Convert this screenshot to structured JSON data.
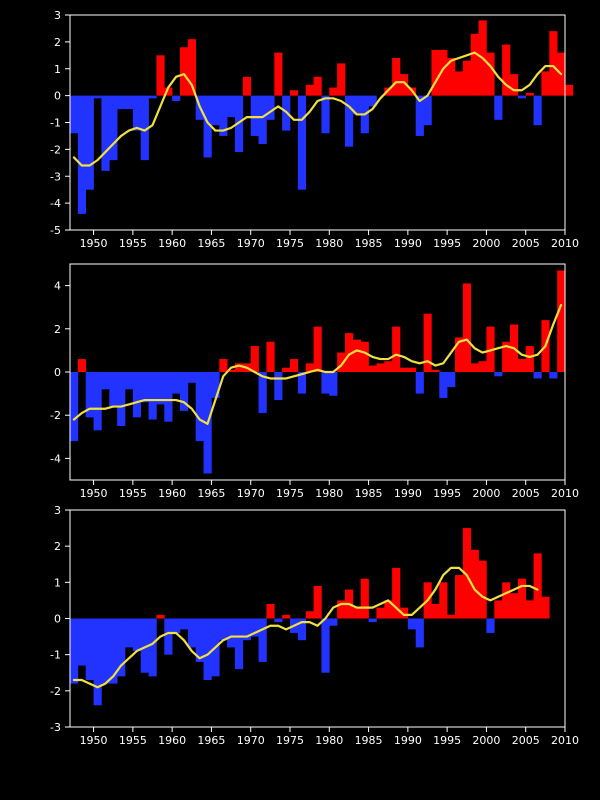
{
  "colors": {
    "background": "#000000",
    "positive": "#ff0000",
    "negative": "#2233ff",
    "smooth": "#f0e040",
    "axis": "#ffffff"
  },
  "chart_data": [
    {
      "type": "bar",
      "title": "",
      "xlabel": "",
      "ylabel": "",
      "xlim": [
        1947,
        2010
      ],
      "ylim": [
        -5,
        3
      ],
      "xticks": [
        1950,
        1955,
        1960,
        1965,
        1970,
        1975,
        1980,
        1985,
        1990,
        1995,
        2000,
        2005,
        2010
      ],
      "yticks": [
        -5,
        -4,
        -3,
        -2,
        -1,
        0,
        1,
        2,
        3
      ],
      "grid": false,
      "x_start": 1947,
      "series": [
        {
          "values": [
            -1.4,
            -4.4,
            -3.5,
            -0.1,
            -2.8,
            -2.4,
            -0.5,
            -0.5,
            -1.3,
            -2.4,
            -0.1,
            1.5,
            0.3,
            -0.2,
            1.8,
            2.1,
            -0.9,
            -2.3,
            -1.1,
            -1.5,
            -0.8,
            -2.1,
            0.7,
            -1.5,
            -1.8,
            -0.9,
            1.6,
            -1.3,
            0.2,
            -3.5,
            0.4,
            0.7,
            -1.4,
            0.3,
            1.2,
            -1.9,
            -0.7,
            -1.4,
            -0.4,
            0.0,
            0.3,
            1.4,
            0.8,
            0.3,
            -1.5,
            -1.1,
            1.7,
            1.7,
            1.4,
            0.9,
            1.3,
            2.3,
            2.8,
            1.6,
            -0.9,
            1.9,
            0.8,
            -0.1,
            0.1,
            -1.1,
            0.9,
            2.4,
            1.6,
            0.4
          ]
        },
        {
          "values": [
            -2.3,
            -2.6,
            -2.6,
            -2.4,
            -2.1,
            -1.8,
            -1.5,
            -1.3,
            -1.2,
            -1.3,
            -1.1,
            -0.4,
            0.3,
            0.7,
            0.8,
            0.4,
            -0.4,
            -1.0,
            -1.3,
            -1.3,
            -1.2,
            -1.0,
            -0.8,
            -0.8,
            -0.8,
            -0.6,
            -0.4,
            -0.6,
            -0.9,
            -0.9,
            -0.6,
            -0.2,
            -0.1,
            -0.1,
            -0.2,
            -0.4,
            -0.7,
            -0.7,
            -0.5,
            -0.1,
            0.2,
            0.5,
            0.5,
            0.2,
            -0.2,
            0.0,
            0.5,
            1.0,
            1.3,
            1.4,
            1.5,
            1.6,
            1.4,
            1.1,
            0.7,
            0.4,
            0.2,
            0.2,
            0.4,
            0.8,
            1.1,
            1.1,
            0.8
          ]
        }
      ]
    },
    {
      "type": "bar",
      "title": "",
      "xlabel": "",
      "ylabel": "",
      "xlim": [
        1947,
        2010
      ],
      "ylim": [
        -5,
        5
      ],
      "xticks": [
        1950,
        1955,
        1960,
        1965,
        1970,
        1975,
        1980,
        1985,
        1990,
        1995,
        2000,
        2005,
        2010
      ],
      "yticks": [
        -4,
        -2,
        0,
        2,
        4
      ],
      "grid": false,
      "x_start": 1947,
      "series": [
        {
          "values": [
            -3.2,
            0.6,
            -2.1,
            -2.7,
            -0.8,
            -1.6,
            -2.5,
            -0.8,
            -2.1,
            -1.4,
            -2.2,
            -1.5,
            -2.3,
            -1.0,
            -1.8,
            -0.5,
            -3.2,
            -4.7,
            -1.2,
            0.6,
            0.1,
            0.4,
            0.4,
            1.2,
            -1.9,
            1.4,
            -1.3,
            0.2,
            0.6,
            -1.0,
            0.4,
            2.1,
            -1.0,
            -1.1,
            0.9,
            1.8,
            1.5,
            1.4,
            0.3,
            0.4,
            0.5,
            2.1,
            0.2,
            0.2,
            -1.0,
            2.7,
            0.1,
            -1.2,
            -0.7,
            1.6,
            4.1,
            0.4,
            0.5,
            2.1,
            -0.2,
            1.4,
            2.2,
            0.6,
            1.2,
            -0.3,
            2.4,
            -0.3,
            4.7
          ]
        },
        {
          "values": [
            -2.2,
            -1.9,
            -1.7,
            -1.7,
            -1.7,
            -1.6,
            -1.6,
            -1.5,
            -1.4,
            -1.3,
            -1.3,
            -1.3,
            -1.3,
            -1.3,
            -1.4,
            -1.7,
            -2.2,
            -2.4,
            -1.3,
            -0.2,
            0.2,
            0.3,
            0.2,
            0.0,
            -0.2,
            -0.3,
            -0.3,
            -0.3,
            -0.2,
            -0.1,
            0.0,
            0.1,
            0.0,
            0.0,
            0.3,
            0.8,
            1.0,
            0.9,
            0.7,
            0.6,
            0.6,
            0.8,
            0.7,
            0.5,
            0.4,
            0.5,
            0.3,
            0.4,
            0.9,
            1.4,
            1.5,
            1.1,
            0.9,
            1.0,
            1.1,
            1.2,
            1.1,
            0.8,
            0.7,
            0.8,
            1.2,
            2.2,
            3.1
          ]
        }
      ]
    },
    {
      "type": "bar",
      "title": "",
      "xlabel": "",
      "ylabel": "",
      "xlim": [
        1947,
        2010
      ],
      "ylim": [
        -3,
        3
      ],
      "xticks": [
        1950,
        1955,
        1960,
        1965,
        1970,
        1975,
        1980,
        1985,
        1990,
        1995,
        2000,
        2005,
        2010
      ],
      "yticks": [
        -3,
        -2,
        -1,
        0,
        1,
        2,
        3
      ],
      "grid": false,
      "x_start": 1947,
      "series": [
        {
          "values": [
            -1.8,
            -1.3,
            -1.7,
            -2.4,
            -1.8,
            -1.8,
            -1.6,
            -0.8,
            -0.9,
            -1.5,
            -1.6,
            0.1,
            -1.0,
            -0.4,
            -0.3,
            -0.8,
            -1.2,
            -1.7,
            -1.6,
            -0.6,
            -0.8,
            -1.4,
            -0.6,
            -0.5,
            -1.2,
            0.4,
            -0.1,
            0.1,
            -0.4,
            -0.6,
            0.2,
            0.9,
            -1.5,
            -0.2,
            0.5,
            0.8,
            0.3,
            1.1,
            -0.1,
            0.3,
            0.5,
            1.4,
            0.3,
            -0.3,
            -0.8,
            1.0,
            0.4,
            1.0,
            0.1,
            1.2,
            2.5,
            1.9,
            1.6,
            -0.4,
            0.5,
            1.0,
            0.7,
            1.1,
            0.5,
            1.8,
            0.6
          ]
        },
        {
          "values": [
            -1.7,
            -1.7,
            -1.8,
            -1.9,
            -1.8,
            -1.6,
            -1.3,
            -1.1,
            -0.9,
            -0.8,
            -0.7,
            -0.5,
            -0.4,
            -0.4,
            -0.6,
            -0.9,
            -1.1,
            -1.0,
            -0.8,
            -0.6,
            -0.5,
            -0.5,
            -0.5,
            -0.4,
            -0.3,
            -0.2,
            -0.2,
            -0.3,
            -0.2,
            -0.1,
            -0.1,
            -0.2,
            0.0,
            0.3,
            0.4,
            0.4,
            0.3,
            0.3,
            0.3,
            0.4,
            0.5,
            0.3,
            0.1,
            0.1,
            0.3,
            0.5,
            0.8,
            1.2,
            1.4,
            1.4,
            1.2,
            0.8,
            0.6,
            0.5,
            0.6,
            0.7,
            0.8,
            0.9,
            0.9,
            0.8
          ]
        }
      ]
    }
  ]
}
